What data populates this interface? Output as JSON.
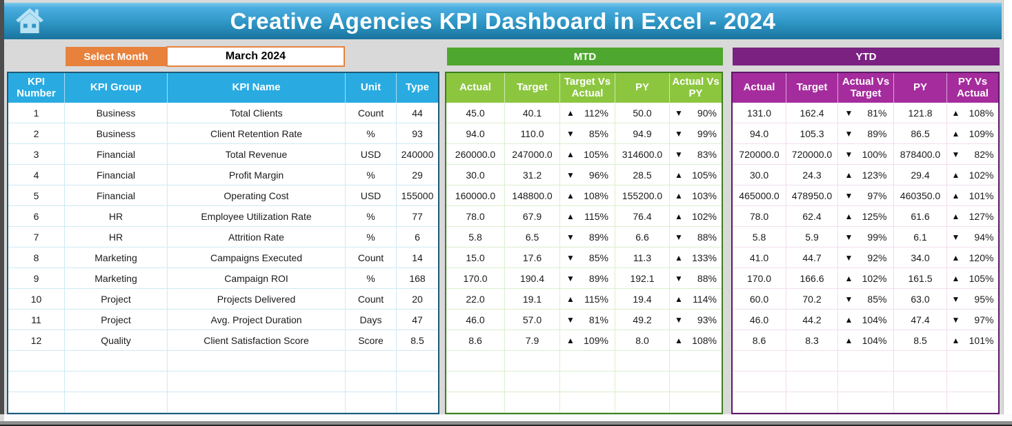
{
  "header": {
    "title": "Creative Agencies KPI Dashboard in Excel - 2024"
  },
  "controls": {
    "select_month_label": "Select Month",
    "selected_month": "March 2024"
  },
  "sections": {
    "mtd_label": "MTD",
    "ytd_label": "YTD"
  },
  "icons": {
    "up": "▲",
    "down": "▼",
    "home": "home-icon"
  },
  "colors": {
    "titlebar_blue": "#2e96c4",
    "table_header_blue": "#29abe2",
    "orange": "#e8813c",
    "mtd_dark_green": "#4ea72e",
    "mtd_header_green": "#8cc63f",
    "ytd_dark_purple": "#7a2182",
    "ytd_header_purple": "#a52c9d",
    "page_background": "#d9d9d9",
    "indicator_black": "#111111"
  },
  "empty_rows": 3,
  "kpi_table": {
    "headers": [
      "KPI Number",
      "KPI Group",
      "KPI Name",
      "Unit",
      "Type"
    ],
    "rows": [
      {
        "number": "1",
        "group": "Business",
        "name": "Total Clients",
        "unit": "Count",
        "type": "44"
      },
      {
        "number": "2",
        "group": "Business",
        "name": "Client Retention Rate",
        "unit": "%",
        "type": "93"
      },
      {
        "number": "3",
        "group": "Financial",
        "name": "Total Revenue",
        "unit": "USD",
        "type": "240000"
      },
      {
        "number": "4",
        "group": "Financial",
        "name": "Profit Margin",
        "unit": "%",
        "type": "29"
      },
      {
        "number": "5",
        "group": "Financial",
        "name": "Operating Cost",
        "unit": "USD",
        "type": "155000"
      },
      {
        "number": "6",
        "group": "HR",
        "name": "Employee Utilization Rate",
        "unit": "%",
        "type": "77"
      },
      {
        "number": "7",
        "group": "HR",
        "name": "Attrition Rate",
        "unit": "%",
        "type": "6"
      },
      {
        "number": "8",
        "group": "Marketing",
        "name": "Campaigns Executed",
        "unit": "Count",
        "type": "14"
      },
      {
        "number": "9",
        "group": "Marketing",
        "name": "Campaign ROI",
        "unit": "%",
        "type": "168"
      },
      {
        "number": "10",
        "group": "Project",
        "name": "Projects Delivered",
        "unit": "Count",
        "type": "20"
      },
      {
        "number": "11",
        "group": "Project",
        "name": "Avg. Project Duration",
        "unit": "Days",
        "type": "47"
      },
      {
        "number": "12",
        "group": "Quality",
        "name": "Client Satisfaction Score",
        "unit": "Score",
        "type": "8.5"
      }
    ]
  },
  "mtd_table": {
    "headers": [
      "Actual",
      "Target",
      "Target Vs Actual",
      "PY",
      "Actual Vs PY"
    ],
    "rows": [
      {
        "actual": "45.0",
        "target": "40.1",
        "target_vs_actual": {
          "dir": "up",
          "value": "112%"
        },
        "py": "50.0",
        "actual_vs_py": {
          "dir": "down",
          "value": "90%"
        }
      },
      {
        "actual": "94.0",
        "target": "110.0",
        "target_vs_actual": {
          "dir": "down",
          "value": "85%"
        },
        "py": "94.9",
        "actual_vs_py": {
          "dir": "down",
          "value": "99%"
        }
      },
      {
        "actual": "260000.0",
        "target": "247000.0",
        "target_vs_actual": {
          "dir": "up",
          "value": "105%"
        },
        "py": "314600.0",
        "actual_vs_py": {
          "dir": "down",
          "value": "83%"
        }
      },
      {
        "actual": "30.0",
        "target": "31.2",
        "target_vs_actual": {
          "dir": "down",
          "value": "96%"
        },
        "py": "28.5",
        "actual_vs_py": {
          "dir": "up",
          "value": "105%"
        }
      },
      {
        "actual": "160000.0",
        "target": "148800.0",
        "target_vs_actual": {
          "dir": "up",
          "value": "108%"
        },
        "py": "155200.0",
        "actual_vs_py": {
          "dir": "up",
          "value": "103%"
        }
      },
      {
        "actual": "78.0",
        "target": "67.9",
        "target_vs_actual": {
          "dir": "up",
          "value": "115%"
        },
        "py": "76.4",
        "actual_vs_py": {
          "dir": "up",
          "value": "102%"
        }
      },
      {
        "actual": "5.8",
        "target": "6.5",
        "target_vs_actual": {
          "dir": "down",
          "value": "89%"
        },
        "py": "6.6",
        "actual_vs_py": {
          "dir": "down",
          "value": "88%"
        }
      },
      {
        "actual": "15.0",
        "target": "17.6",
        "target_vs_actual": {
          "dir": "down",
          "value": "85%"
        },
        "py": "11.3",
        "actual_vs_py": {
          "dir": "up",
          "value": "133%"
        }
      },
      {
        "actual": "170.0",
        "target": "190.4",
        "target_vs_actual": {
          "dir": "down",
          "value": "89%"
        },
        "py": "192.1",
        "actual_vs_py": {
          "dir": "down",
          "value": "88%"
        }
      },
      {
        "actual": "22.0",
        "target": "19.1",
        "target_vs_actual": {
          "dir": "up",
          "value": "115%"
        },
        "py": "19.4",
        "actual_vs_py": {
          "dir": "up",
          "value": "114%"
        }
      },
      {
        "actual": "46.0",
        "target": "57.0",
        "target_vs_actual": {
          "dir": "down",
          "value": "81%"
        },
        "py": "49.2",
        "actual_vs_py": {
          "dir": "down",
          "value": "93%"
        }
      },
      {
        "actual": "8.6",
        "target": "7.9",
        "target_vs_actual": {
          "dir": "up",
          "value": "109%"
        },
        "py": "8.0",
        "actual_vs_py": {
          "dir": "up",
          "value": "108%"
        }
      }
    ]
  },
  "ytd_table": {
    "headers": [
      "Actual",
      "Target",
      "Actual Vs Target",
      "PY",
      "PY Vs Actual"
    ],
    "rows": [
      {
        "actual": "131.0",
        "target": "162.4",
        "actual_vs_target": {
          "dir": "down",
          "value": "81%"
        },
        "py": "121.8",
        "py_vs_actual": {
          "dir": "up",
          "value": "108%"
        }
      },
      {
        "actual": "94.0",
        "target": "105.3",
        "actual_vs_target": {
          "dir": "down",
          "value": "89%"
        },
        "py": "86.5",
        "py_vs_actual": {
          "dir": "up",
          "value": "109%"
        }
      },
      {
        "actual": "720000.0",
        "target": "720000.0",
        "actual_vs_target": {
          "dir": "down",
          "value": "100%"
        },
        "py": "878400.0",
        "py_vs_actual": {
          "dir": "down",
          "value": "82%"
        }
      },
      {
        "actual": "30.0",
        "target": "24.3",
        "actual_vs_target": {
          "dir": "up",
          "value": "123%"
        },
        "py": "29.4",
        "py_vs_actual": {
          "dir": "up",
          "value": "102%"
        }
      },
      {
        "actual": "465000.0",
        "target": "478950.0",
        "actual_vs_target": {
          "dir": "down",
          "value": "97%"
        },
        "py": "460350.0",
        "py_vs_actual": {
          "dir": "up",
          "value": "101%"
        }
      },
      {
        "actual": "78.0",
        "target": "62.4",
        "actual_vs_target": {
          "dir": "up",
          "value": "125%"
        },
        "py": "61.6",
        "py_vs_actual": {
          "dir": "up",
          "value": "127%"
        }
      },
      {
        "actual": "5.8",
        "target": "5.9",
        "actual_vs_target": {
          "dir": "down",
          "value": "99%"
        },
        "py": "6.1",
        "py_vs_actual": {
          "dir": "down",
          "value": "94%"
        }
      },
      {
        "actual": "41.0",
        "target": "44.7",
        "actual_vs_target": {
          "dir": "down",
          "value": "92%"
        },
        "py": "34.0",
        "py_vs_actual": {
          "dir": "up",
          "value": "120%"
        }
      },
      {
        "actual": "170.0",
        "target": "166.6",
        "actual_vs_target": {
          "dir": "up",
          "value": "102%"
        },
        "py": "161.5",
        "py_vs_actual": {
          "dir": "up",
          "value": "105%"
        }
      },
      {
        "actual": "60.0",
        "target": "70.2",
        "actual_vs_target": {
          "dir": "down",
          "value": "85%"
        },
        "py": "63.0",
        "py_vs_actual": {
          "dir": "down",
          "value": "95%"
        }
      },
      {
        "actual": "46.0",
        "target": "44.2",
        "actual_vs_target": {
          "dir": "up",
          "value": "104%"
        },
        "py": "47.4",
        "py_vs_actual": {
          "dir": "down",
          "value": "97%"
        }
      },
      {
        "actual": "8.6",
        "target": "8.3",
        "actual_vs_target": {
          "dir": "up",
          "value": "104%"
        },
        "py": "8.5",
        "py_vs_actual": {
          "dir": "up",
          "value": "101%"
        }
      }
    ]
  }
}
